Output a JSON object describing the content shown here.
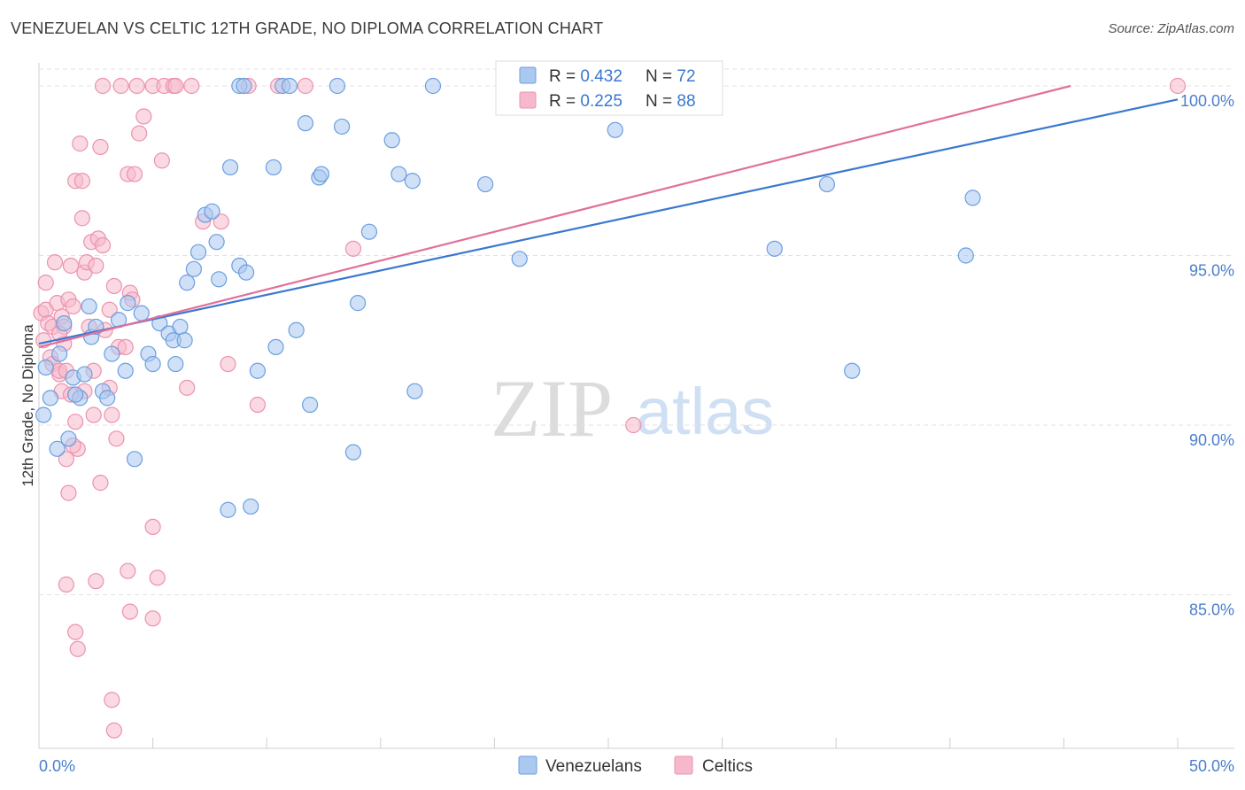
{
  "header": {
    "title": "VENEZUELAN VS CELTIC 12TH GRADE, NO DIPLOMA CORRELATION CHART",
    "source": "Source: ZipAtlas.com"
  },
  "watermark": {
    "zip": "ZIP",
    "atlas": "atlas"
  },
  "colors": {
    "blue_fill": "#aac8f0",
    "blue_stroke": "#6b9ee0",
    "blue_line": "#3a78d0",
    "pink_fill": "#f6b9cc",
    "pink_stroke": "#ec92ae",
    "pink_line": "#e0709a",
    "tick_label": "#4a7fcc",
    "grid": "#e2e2e2"
  },
  "legend_box": {
    "rows": [
      {
        "r_label": "R = ",
        "r_value": "0.432",
        "n_label": "N = ",
        "n_value": "72"
      },
      {
        "r_label": "R = ",
        "r_value": "0.225",
        "n_label": "N = ",
        "n_value": "88"
      }
    ]
  },
  "chart_data": {
    "type": "scatter",
    "title": "VENEZUELAN VS CELTIC 12TH GRADE, NO DIPLOMA CORRELATION CHART",
    "xlabel": "",
    "ylabel": "12th Grade, No Diploma",
    "xlim": [
      0,
      50
    ],
    "ylim": [
      80.0,
      100.5
    ],
    "x_tick_labels": [
      "0.0%",
      "50.0%"
    ],
    "y_ticks": [
      85,
      90,
      95,
      100
    ],
    "y_tick_labels": [
      "85.0%",
      "90.0%",
      "95.0%",
      "100.0%"
    ],
    "legend": [
      "Venezuelans",
      "Celtics"
    ],
    "series": [
      {
        "name": "Venezuelans",
        "r": 0.432,
        "n": 72,
        "trend": {
          "x": [
            0,
            50
          ],
          "y": [
            92.4,
            99.6
          ]
        },
        "points": [
          [
            0.3,
            91.7
          ],
          [
            0.5,
            90.8
          ],
          [
            0.8,
            89.3
          ],
          [
            0.9,
            92.1
          ],
          [
            1.1,
            93.0
          ],
          [
            1.3,
            89.6
          ],
          [
            1.5,
            91.4
          ],
          [
            1.8,
            90.8
          ],
          [
            2.2,
            93.5
          ],
          [
            2.3,
            92.6
          ],
          [
            2.5,
            92.9
          ],
          [
            2.8,
            91.0
          ],
          [
            3.0,
            90.8
          ],
          [
            3.2,
            92.1
          ],
          [
            3.5,
            93.1
          ],
          [
            3.9,
            93.6
          ],
          [
            3.8,
            91.6
          ],
          [
            4.2,
            89.0
          ],
          [
            4.5,
            93.3
          ],
          [
            4.8,
            92.1
          ],
          [
            5.0,
            91.8
          ],
          [
            5.3,
            93.0
          ],
          [
            5.7,
            92.7
          ],
          [
            5.9,
            92.5
          ],
          [
            6.2,
            92.9
          ],
          [
            6.4,
            92.5
          ],
          [
            6.5,
            94.2
          ],
          [
            6.8,
            94.6
          ],
          [
            7.0,
            95.1
          ],
          [
            7.3,
            96.2
          ],
          [
            7.6,
            96.3
          ],
          [
            7.8,
            95.4
          ],
          [
            7.9,
            94.3
          ],
          [
            8.4,
            97.6
          ],
          [
            8.8,
            94.7
          ],
          [
            9.1,
            94.5
          ],
          [
            9.3,
            87.6
          ],
          [
            8.3,
            87.5
          ],
          [
            9.6,
            91.6
          ],
          [
            10.3,
            97.6
          ],
          [
            10.4,
            92.3
          ],
          [
            10.7,
            100.0
          ],
          [
            11.3,
            92.8
          ],
          [
            11.7,
            98.9
          ],
          [
            11.9,
            90.6
          ],
          [
            12.3,
            97.3
          ],
          [
            12.4,
            97.4
          ],
          [
            13.1,
            100.0
          ],
          [
            13.3,
            98.8
          ],
          [
            13.8,
            89.2
          ],
          [
            14.0,
            93.6
          ],
          [
            14.5,
            95.7
          ],
          [
            15.5,
            98.4
          ],
          [
            15.8,
            97.4
          ],
          [
            16.4,
            97.2
          ],
          [
            16.5,
            91.0
          ],
          [
            17.3,
            100.0
          ],
          [
            19.6,
            97.1
          ],
          [
            21.1,
            94.9
          ],
          [
            25.3,
            98.7
          ],
          [
            32.3,
            95.2
          ],
          [
            34.6,
            97.1
          ],
          [
            35.7,
            91.6
          ],
          [
            40.7,
            95.0
          ],
          [
            41.0,
            96.7
          ],
          [
            0.2,
            90.3
          ],
          [
            8.8,
            100.0
          ],
          [
            2.0,
            91.5
          ],
          [
            1.6,
            90.9
          ],
          [
            6.0,
            91.8
          ],
          [
            9.0,
            100.0
          ],
          [
            11.0,
            100.0
          ]
        ]
      },
      {
        "name": "Celtics",
        "r": 0.225,
        "n": 88,
        "trend": {
          "x": [
            0,
            45.3
          ],
          "y": [
            92.3,
            100.0
          ]
        },
        "points": [
          [
            0.1,
            93.3
          ],
          [
            0.2,
            92.5
          ],
          [
            0.3,
            94.2
          ],
          [
            0.3,
            93.4
          ],
          [
            0.4,
            93.0
          ],
          [
            0.5,
            92.0
          ],
          [
            0.6,
            91.8
          ],
          [
            0.6,
            92.9
          ],
          [
            0.7,
            94.8
          ],
          [
            0.8,
            93.6
          ],
          [
            0.9,
            91.5
          ],
          [
            0.9,
            91.6
          ],
          [
            1.0,
            91.0
          ],
          [
            1.0,
            93.2
          ],
          [
            1.1,
            92.9
          ],
          [
            1.1,
            92.4
          ],
          [
            1.2,
            91.6
          ],
          [
            1.2,
            89.0
          ],
          [
            1.3,
            93.7
          ],
          [
            1.3,
            88.0
          ],
          [
            1.4,
            94.7
          ],
          [
            1.5,
            93.5
          ],
          [
            1.6,
            90.1
          ],
          [
            1.6,
            97.2
          ],
          [
            1.7,
            89.3
          ],
          [
            1.8,
            98.3
          ],
          [
            1.9,
            97.2
          ],
          [
            1.9,
            96.1
          ],
          [
            2.0,
            94.5
          ],
          [
            2.1,
            94.8
          ],
          [
            2.2,
            92.9
          ],
          [
            2.3,
            95.4
          ],
          [
            2.4,
            91.6
          ],
          [
            2.4,
            90.3
          ],
          [
            2.5,
            94.7
          ],
          [
            2.6,
            95.5
          ],
          [
            2.7,
            98.2
          ],
          [
            2.8,
            95.3
          ],
          [
            2.9,
            92.8
          ],
          [
            3.1,
            93.4
          ],
          [
            3.1,
            91.1
          ],
          [
            3.2,
            90.3
          ],
          [
            3.3,
            94.1
          ],
          [
            3.5,
            92.3
          ],
          [
            3.8,
            92.3
          ],
          [
            3.9,
            97.4
          ],
          [
            4.0,
            93.9
          ],
          [
            4.2,
            97.4
          ],
          [
            4.4,
            98.6
          ],
          [
            4.6,
            99.1
          ],
          [
            5.0,
            100.0
          ],
          [
            5.4,
            97.8
          ],
          [
            6.7,
            100.0
          ],
          [
            7.2,
            96.0
          ],
          [
            8.0,
            96.0
          ],
          [
            8.3,
            91.8
          ],
          [
            9.2,
            100.0
          ],
          [
            9.6,
            90.6
          ],
          [
            10.5,
            100.0
          ],
          [
            11.7,
            100.0
          ],
          [
            13.8,
            95.2
          ],
          [
            3.6,
            100.0
          ],
          [
            2.8,
            100.0
          ],
          [
            4.3,
            100.0
          ],
          [
            1.6,
            83.9
          ],
          [
            1.7,
            83.4
          ],
          [
            1.2,
            85.3
          ],
          [
            2.5,
            85.4
          ],
          [
            3.9,
            85.7
          ],
          [
            4.0,
            84.5
          ],
          [
            5.0,
            84.3
          ],
          [
            5.2,
            85.5
          ],
          [
            5.0,
            87.0
          ],
          [
            3.2,
            81.9
          ],
          [
            3.3,
            81.0
          ],
          [
            6.5,
            91.1
          ],
          [
            2.7,
            88.3
          ],
          [
            1.5,
            89.4
          ],
          [
            0.9,
            92.7
          ],
          [
            1.4,
            90.9
          ],
          [
            26.1,
            90.0
          ],
          [
            50.0,
            100.0
          ],
          [
            3.4,
            89.6
          ],
          [
            2.0,
            91.0
          ],
          [
            4.1,
            93.7
          ],
          [
            5.5,
            100.0
          ],
          [
            5.9,
            100.0
          ],
          [
            6.0,
            100.0
          ]
        ]
      }
    ]
  }
}
